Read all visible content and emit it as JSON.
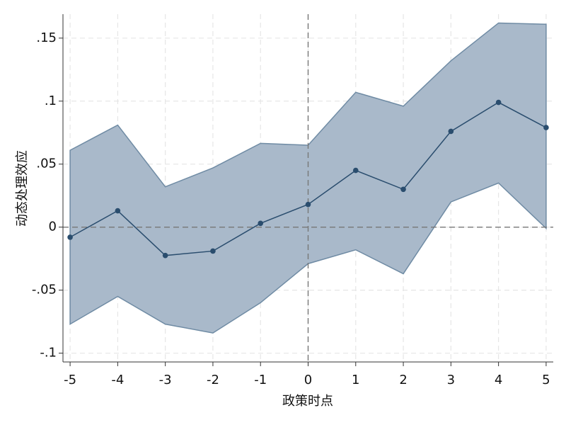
{
  "chart_data": {
    "type": "line",
    "xlabel": "政策时点",
    "ylabel": "动态处理效应",
    "x": [
      -5,
      -4,
      -3,
      -2,
      -1,
      0,
      1,
      2,
      3,
      4,
      5
    ],
    "values": [
      -0.008,
      0.013,
      -0.0225,
      -0.019,
      0.003,
      0.018,
      0.045,
      0.03,
      0.076,
      0.099,
      0.079
    ],
    "ci_upper": [
      0.061,
      0.081,
      0.032,
      0.047,
      0.0665,
      0.065,
      0.107,
      0.096,
      0.132,
      0.162,
      0.161
    ],
    "ci_lower": [
      -0.077,
      -0.055,
      -0.077,
      -0.084,
      -0.06,
      -0.029,
      -0.018,
      -0.037,
      0.02,
      0.035,
      -0.001
    ],
    "color": "#2a4d6e",
    "band_color": "#a9b9ca",
    "band_edge_color": "#6f8ba4",
    "xlim": [
      -5.15,
      5.15
    ],
    "ylim": [
      -0.107,
      0.169
    ],
    "xticks": [
      -5,
      -4,
      -3,
      -2,
      -1,
      0,
      1,
      2,
      3,
      4,
      5
    ],
    "yticks": [
      {
        "value": -0.1,
        "label": "-.1"
      },
      {
        "value": -0.05,
        "label": "-.05"
      },
      0,
      {
        "value": 0.05,
        "label": ".05"
      },
      {
        "value": 0.1,
        "label": ".1"
      },
      {
        "value": 0.15,
        "label": ".15"
      }
    ],
    "grid": true,
    "vline": 0,
    "hline": 0
  }
}
